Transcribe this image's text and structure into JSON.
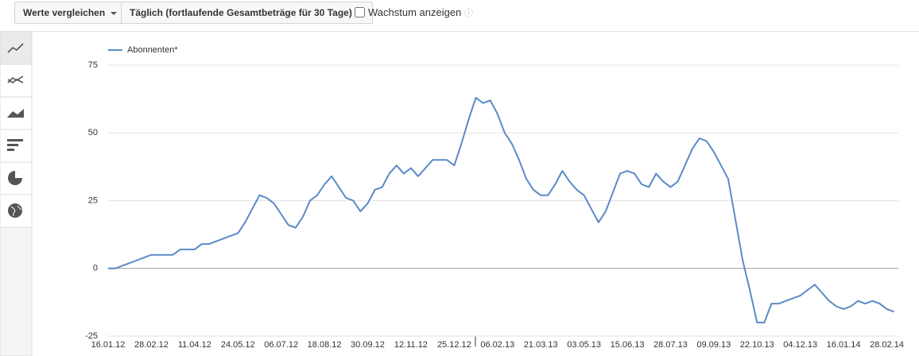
{
  "toolbar": {
    "compare": "Werte vergleichen",
    "period": "Täglich (fortlaufende Gesamtbeträge für 30 Tage)",
    "growth": "Wachstum anzeigen"
  },
  "chart_data": {
    "type": "line",
    "categories": [
      "16.01.12",
      null,
      null,
      null,
      null,
      null,
      "28.02.12",
      null,
      null,
      null,
      null,
      null,
      "11.04.12",
      null,
      null,
      null,
      null,
      null,
      "24.05.12",
      null,
      null,
      null,
      null,
      null,
      "06.07.12",
      null,
      null,
      null,
      null,
      null,
      "18.08.12",
      null,
      null,
      null,
      null,
      null,
      "30.09.12",
      null,
      null,
      null,
      null,
      null,
      "12.11.12",
      null,
      null,
      null,
      null,
      null,
      "25.12.12",
      null,
      null,
      null,
      null,
      null,
      "06.02.13",
      null,
      null,
      null,
      null,
      null,
      "21.03.13",
      null,
      null,
      null,
      null,
      null,
      "03.05.13",
      null,
      null,
      null,
      null,
      null,
      "15.06.13",
      null,
      null,
      null,
      null,
      null,
      "28.07.13",
      null,
      null,
      null,
      null,
      null,
      "09.09.13",
      null,
      null,
      null,
      null,
      null,
      "22.10.13",
      null,
      null,
      null,
      null,
      null,
      "04.12.13",
      null,
      null,
      null,
      null,
      null,
      "16.01.14",
      null,
      null,
      null,
      null,
      null,
      "28.02.14",
      null
    ],
    "series": [
      {
        "name": "Abonnenten*",
        "color": "#5b8ac7",
        "values": [
          0,
          0,
          1,
          2,
          3,
          4,
          5,
          5,
          5,
          5,
          7,
          7,
          7,
          9,
          9,
          10,
          11,
          12,
          13,
          17,
          22,
          27,
          26,
          24,
          20,
          16,
          15,
          19,
          25,
          27,
          31,
          34,
          30,
          26,
          25,
          21,
          24,
          29,
          30,
          35,
          38,
          35,
          37,
          34,
          37,
          40,
          40,
          40,
          38,
          46,
          55,
          63,
          61,
          62,
          57,
          50,
          46,
          40,
          33,
          29,
          27,
          27,
          31,
          36,
          32,
          29,
          27,
          22,
          17,
          21,
          28,
          35,
          36,
          35,
          31,
          30,
          35,
          32,
          30,
          32,
          38,
          44,
          48,
          47,
          43,
          38,
          33,
          18,
          3,
          -8,
          -20,
          -20,
          -13,
          -13,
          -12,
          -11,
          -10,
          -8,
          -6,
          -9,
          -12,
          -14,
          -15,
          -14,
          -12,
          -13,
          -12,
          -13,
          -15,
          -16
        ]
      }
    ],
    "ylim": [
      -25,
      75
    ],
    "yticks": [
      -25,
      0,
      25,
      50,
      75
    ],
    "grid": true
  }
}
